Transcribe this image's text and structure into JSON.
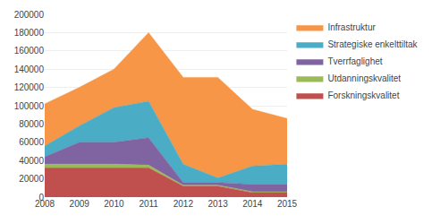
{
  "chart_data": {
    "type": "area",
    "stacked": true,
    "x": [
      2008,
      2009,
      2010,
      2011,
      2012,
      2013,
      2014,
      2015
    ],
    "series": [
      {
        "name": "Forskningskvalitet",
        "color": "#C0504D",
        "values": [
          32000,
          32000,
          32000,
          32000,
          12000,
          12000,
          5000,
          5000
        ]
      },
      {
        "name": "Utdanningskvalitet",
        "color": "#9BBB59",
        "values": [
          4000,
          4000,
          4000,
          3000,
          1000,
          1000,
          1000,
          1000
        ]
      },
      {
        "name": "Tverrfaglighet",
        "color": "#8064A2",
        "values": [
          8000,
          24000,
          24000,
          30000,
          3000,
          3000,
          8000,
          8000
        ]
      },
      {
        "name": "Strategiske enkelttiltak",
        "color": "#4BACC6",
        "values": [
          12000,
          18000,
          38000,
          40000,
          20000,
          5000,
          20000,
          22000
        ]
      },
      {
        "name": "Infrastruktur",
        "color": "#F79646",
        "values": [
          46000,
          42000,
          42000,
          75000,
          95000,
          110000,
          62000,
          50000
        ]
      }
    ],
    "xlim": [
      2008,
      2015
    ],
    "xticks": [
      2008,
      2009,
      2010,
      2011,
      2012,
      2013,
      2014,
      2015
    ],
    "ylim": [
      0,
      200000
    ],
    "yticks": [
      0,
      20000,
      40000,
      60000,
      80000,
      100000,
      120000,
      140000,
      160000,
      180000,
      200000
    ],
    "grid": true,
    "legend": "right"
  }
}
